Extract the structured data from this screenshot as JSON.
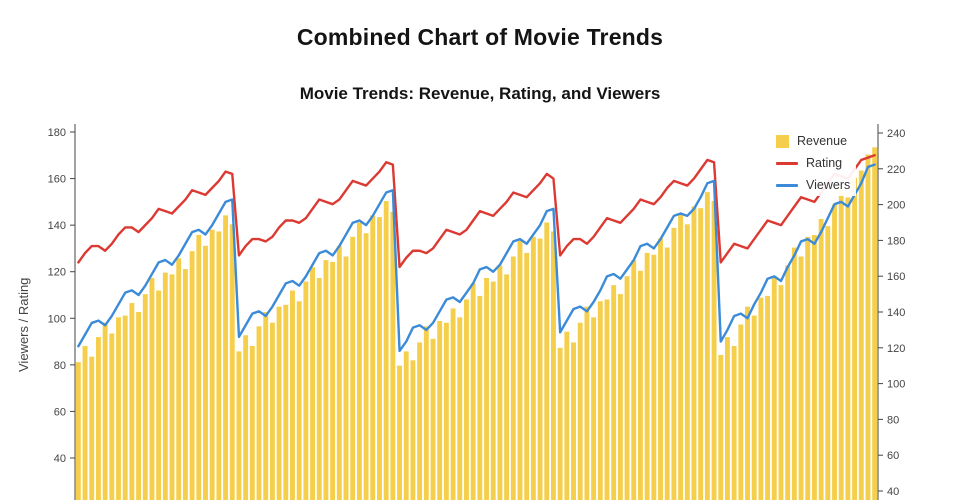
{
  "header": {
    "title": "Combined Chart of Movie Trends",
    "subtitle": "Movie Trends: Revenue, Rating, and Viewers"
  },
  "colors": {
    "revenue": "#F5CF4B",
    "rating": "#DC3932",
    "viewers": "#3B8BD8",
    "axis_text": "#444444",
    "title_text": "#141414",
    "background": "#ffffff"
  },
  "legend": {
    "position": "top-right",
    "items": [
      {
        "label": "Revenue",
        "swatch": "square",
        "color": "#F5CF4B"
      },
      {
        "label": "Rating",
        "swatch": "line",
        "color": "#DC3932"
      },
      {
        "label": "Viewers",
        "swatch": "line",
        "color": "#3B8BD8"
      }
    ]
  },
  "chart_data": {
    "type": "combo",
    "title": "Combined Chart of Movie Trends",
    "subtitle": "Movie Trends: Revenue, Rating, and Viewers",
    "grid": false,
    "legend_position": "top-right",
    "x": {
      "type": "index",
      "count": 120,
      "labels_visible": false
    },
    "left_axis": {
      "label": "Viewers / Rating",
      "ticks": [
        180,
        160,
        140,
        120,
        100,
        80,
        60,
        40
      ],
      "range": [
        22,
        181
      ]
    },
    "right_axis": {
      "label": "",
      "ticks": [
        240,
        220,
        200,
        180,
        160,
        140,
        120,
        100,
        80,
        60,
        40
      ],
      "range": [
        34,
        245
      ]
    },
    "series": [
      {
        "name": "Revenue",
        "type": "bar",
        "yaxis": "right",
        "color": "#F5CF4B",
        "values": [
          112,
          121,
          115,
          126,
          134,
          128,
          137,
          138,
          145,
          140,
          150,
          159,
          152,
          162,
          161,
          170,
          164,
          174,
          183,
          177,
          186,
          185,
          194,
          189,
          118,
          127,
          121,
          132,
          140,
          134,
          143,
          144,
          152,
          146,
          157,
          165,
          159,
          169,
          168,
          177,
          171,
          182,
          190,
          184,
          194,
          193,
          202,
          196,
          110,
          118,
          113,
          123,
          132,
          125,
          135,
          134,
          142,
          137,
          147,
          156,
          149,
          159,
          157,
          166,
          161,
          171,
          180,
          173,
          182,
          181,
          190,
          185,
          120,
          129,
          123,
          134,
          143,
          137,
          146,
          147,
          155,
          150,
          160,
          169,
          163,
          173,
          172,
          181,
          176,
          187,
          195,
          189,
          199,
          198,
          207,
          202,
          116,
          126,
          121,
          133,
          143,
          138,
          148,
          149,
          159,
          155,
          166,
          176,
          171,
          182,
          183,
          192,
          188,
          200,
          209,
          204,
          215,
          219,
          228,
          232
        ]
      },
      {
        "name": "Rating",
        "type": "line",
        "yaxis": "left",
        "color": "#DC3932",
        "values": [
          124,
          128,
          131,
          131,
          129,
          132,
          136,
          139,
          139,
          137,
          140,
          143,
          147,
          146,
          145,
          148,
          151,
          155,
          154,
          153,
          156,
          159,
          163,
          162,
          127,
          131,
          134,
          134,
          133,
          135,
          139,
          142,
          142,
          141,
          143,
          147,
          151,
          150,
          149,
          151,
          155,
          159,
          158,
          157,
          160,
          163,
          167,
          166,
          122,
          126,
          129,
          129,
          128,
          130,
          134,
          138,
          137,
          136,
          138,
          142,
          146,
          145,
          144,
          147,
          150,
          154,
          153,
          152,
          155,
          158,
          162,
          160,
          127,
          131,
          134,
          134,
          132,
          135,
          139,
          143,
          142,
          141,
          144,
          147,
          151,
          150,
          149,
          152,
          156,
          159,
          158,
          157,
          160,
          164,
          168,
          167,
          124,
          128,
          132,
          131,
          130,
          134,
          138,
          142,
          141,
          140,
          144,
          148,
          152,
          151,
          150,
          154,
          158,
          162,
          161,
          160,
          164,
          168,
          169,
          170
        ]
      },
      {
        "name": "Viewers",
        "type": "line",
        "yaxis": "left",
        "color": "#3B8BD8",
        "values": [
          88,
          93,
          98,
          99,
          97,
          101,
          106,
          111,
          112,
          110,
          114,
          119,
          124,
          125,
          123,
          127,
          132,
          137,
          138,
          136,
          140,
          145,
          150,
          151,
          92,
          97,
          102,
          103,
          101,
          105,
          110,
          115,
          116,
          114,
          118,
          123,
          128,
          129,
          127,
          131,
          136,
          141,
          142,
          140,
          144,
          149,
          154,
          155,
          86,
          90,
          96,
          97,
          95,
          98,
          103,
          108,
          109,
          107,
          111,
          115,
          121,
          122,
          120,
          123,
          128,
          133,
          134,
          132,
          136,
          140,
          146,
          147,
          94,
          99,
          104,
          105,
          103,
          107,
          112,
          118,
          119,
          117,
          121,
          125,
          131,
          132,
          130,
          134,
          139,
          144,
          145,
          144,
          147,
          152,
          158,
          159,
          90,
          95,
          101,
          102,
          100,
          106,
          111,
          117,
          118,
          116,
          122,
          127,
          133,
          134,
          132,
          137,
          143,
          149,
          150,
          148,
          153,
          158,
          165,
          166
        ]
      }
    ]
  }
}
